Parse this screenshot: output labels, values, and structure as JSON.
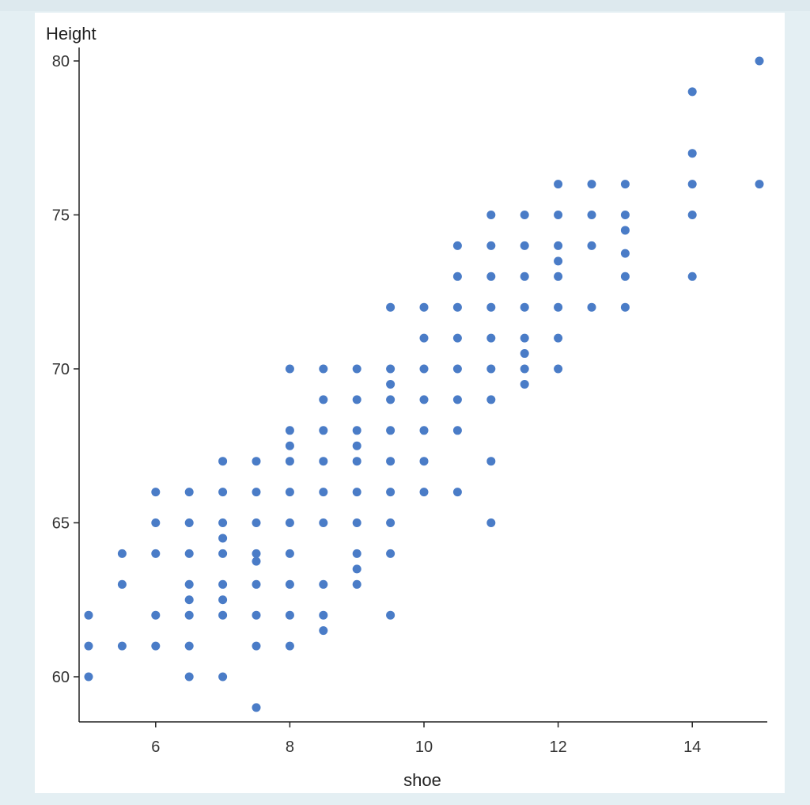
{
  "chart_data": {
    "type": "scatter",
    "title": "",
    "xlabel": "shoe",
    "ylabel": "Height",
    "xlim": [
      5,
      15
    ],
    "ylim": [
      58.5,
      81
    ],
    "xticks": [
      6,
      8,
      10,
      12,
      14
    ],
    "yticks": [
      60,
      65,
      70,
      75,
      80
    ],
    "grid": false,
    "marker_color": "#4a7cc7",
    "series": [
      {
        "points": [
          [
            5,
            62
          ],
          [
            5,
            61
          ],
          [
            5,
            60
          ],
          [
            5.5,
            64
          ],
          [
            5.5,
            63
          ],
          [
            5.5,
            61
          ],
          [
            6,
            66
          ],
          [
            6,
            65
          ],
          [
            6,
            64
          ],
          [
            6,
            62
          ],
          [
            6,
            61
          ],
          [
            6.5,
            66
          ],
          [
            6.5,
            65
          ],
          [
            6.5,
            64
          ],
          [
            6.5,
            63
          ],
          [
            6.5,
            62.5
          ],
          [
            6.5,
            62
          ],
          [
            6.5,
            61
          ],
          [
            6.5,
            60
          ],
          [
            7,
            67
          ],
          [
            7,
            66
          ],
          [
            7,
            65
          ],
          [
            7,
            64.5
          ],
          [
            7,
            64
          ],
          [
            7,
            63
          ],
          [
            7,
            62.5
          ],
          [
            7,
            62
          ],
          [
            7,
            60
          ],
          [
            7.5,
            67
          ],
          [
            7.5,
            66
          ],
          [
            7.5,
            65
          ],
          [
            7.5,
            64
          ],
          [
            7.5,
            63.75
          ],
          [
            7.5,
            63
          ],
          [
            7.5,
            62
          ],
          [
            7.5,
            61
          ],
          [
            7.5,
            59
          ],
          [
            8,
            70
          ],
          [
            8,
            68
          ],
          [
            8,
            67.5
          ],
          [
            8,
            67
          ],
          [
            8,
            66
          ],
          [
            8,
            65
          ],
          [
            8,
            64
          ],
          [
            8,
            63
          ],
          [
            8,
            62
          ],
          [
            8,
            61
          ],
          [
            8.5,
            70
          ],
          [
            8.5,
            69
          ],
          [
            8.5,
            68
          ],
          [
            8.5,
            67
          ],
          [
            8.5,
            66
          ],
          [
            8.5,
            65
          ],
          [
            8.5,
            63
          ],
          [
            8.5,
            62
          ],
          [
            8.5,
            61.5
          ],
          [
            9,
            70
          ],
          [
            9,
            69
          ],
          [
            9,
            68
          ],
          [
            9,
            67.5
          ],
          [
            9,
            67
          ],
          [
            9,
            66
          ],
          [
            9,
            65
          ],
          [
            9,
            64
          ],
          [
            9,
            63.5
          ],
          [
            9,
            63
          ],
          [
            9.5,
            72
          ],
          [
            9.5,
            70
          ],
          [
            9.5,
            69.5
          ],
          [
            9.5,
            69
          ],
          [
            9.5,
            68
          ],
          [
            9.5,
            67
          ],
          [
            9.5,
            66
          ],
          [
            9.5,
            65
          ],
          [
            9.5,
            64
          ],
          [
            9.5,
            62
          ],
          [
            10,
            72
          ],
          [
            10,
            71
          ],
          [
            10,
            70
          ],
          [
            10,
            69
          ],
          [
            10,
            68
          ],
          [
            10,
            67
          ],
          [
            10,
            66
          ],
          [
            10.5,
            74
          ],
          [
            10.5,
            73
          ],
          [
            10.5,
            72
          ],
          [
            10.5,
            71
          ],
          [
            10.5,
            70
          ],
          [
            10.5,
            69
          ],
          [
            10.5,
            68
          ],
          [
            10.5,
            66
          ],
          [
            11,
            75
          ],
          [
            11,
            74
          ],
          [
            11,
            73
          ],
          [
            11,
            72
          ],
          [
            11,
            71
          ],
          [
            11,
            70
          ],
          [
            11,
            69
          ],
          [
            11,
            67
          ],
          [
            11,
            65
          ],
          [
            11.5,
            75
          ],
          [
            11.5,
            74
          ],
          [
            11.5,
            73
          ],
          [
            11.5,
            72
          ],
          [
            11.5,
            71
          ],
          [
            11.5,
            70.5
          ],
          [
            11.5,
            70
          ],
          [
            11.5,
            69.5
          ],
          [
            12,
            76
          ],
          [
            12,
            75
          ],
          [
            12,
            74
          ],
          [
            12,
            73.5
          ],
          [
            12,
            73
          ],
          [
            12,
            72
          ],
          [
            12,
            71
          ],
          [
            12,
            70
          ],
          [
            12.5,
            76
          ],
          [
            12.5,
            75
          ],
          [
            12.5,
            74
          ],
          [
            12.5,
            72
          ],
          [
            13,
            76
          ],
          [
            13,
            75
          ],
          [
            13,
            74.5
          ],
          [
            13,
            73.75
          ],
          [
            13,
            73
          ],
          [
            13,
            72
          ],
          [
            14,
            79
          ],
          [
            14,
            77
          ],
          [
            14,
            76
          ],
          [
            14,
            75
          ],
          [
            14,
            73
          ],
          [
            15,
            80
          ],
          [
            15,
            76
          ]
        ]
      }
    ]
  }
}
